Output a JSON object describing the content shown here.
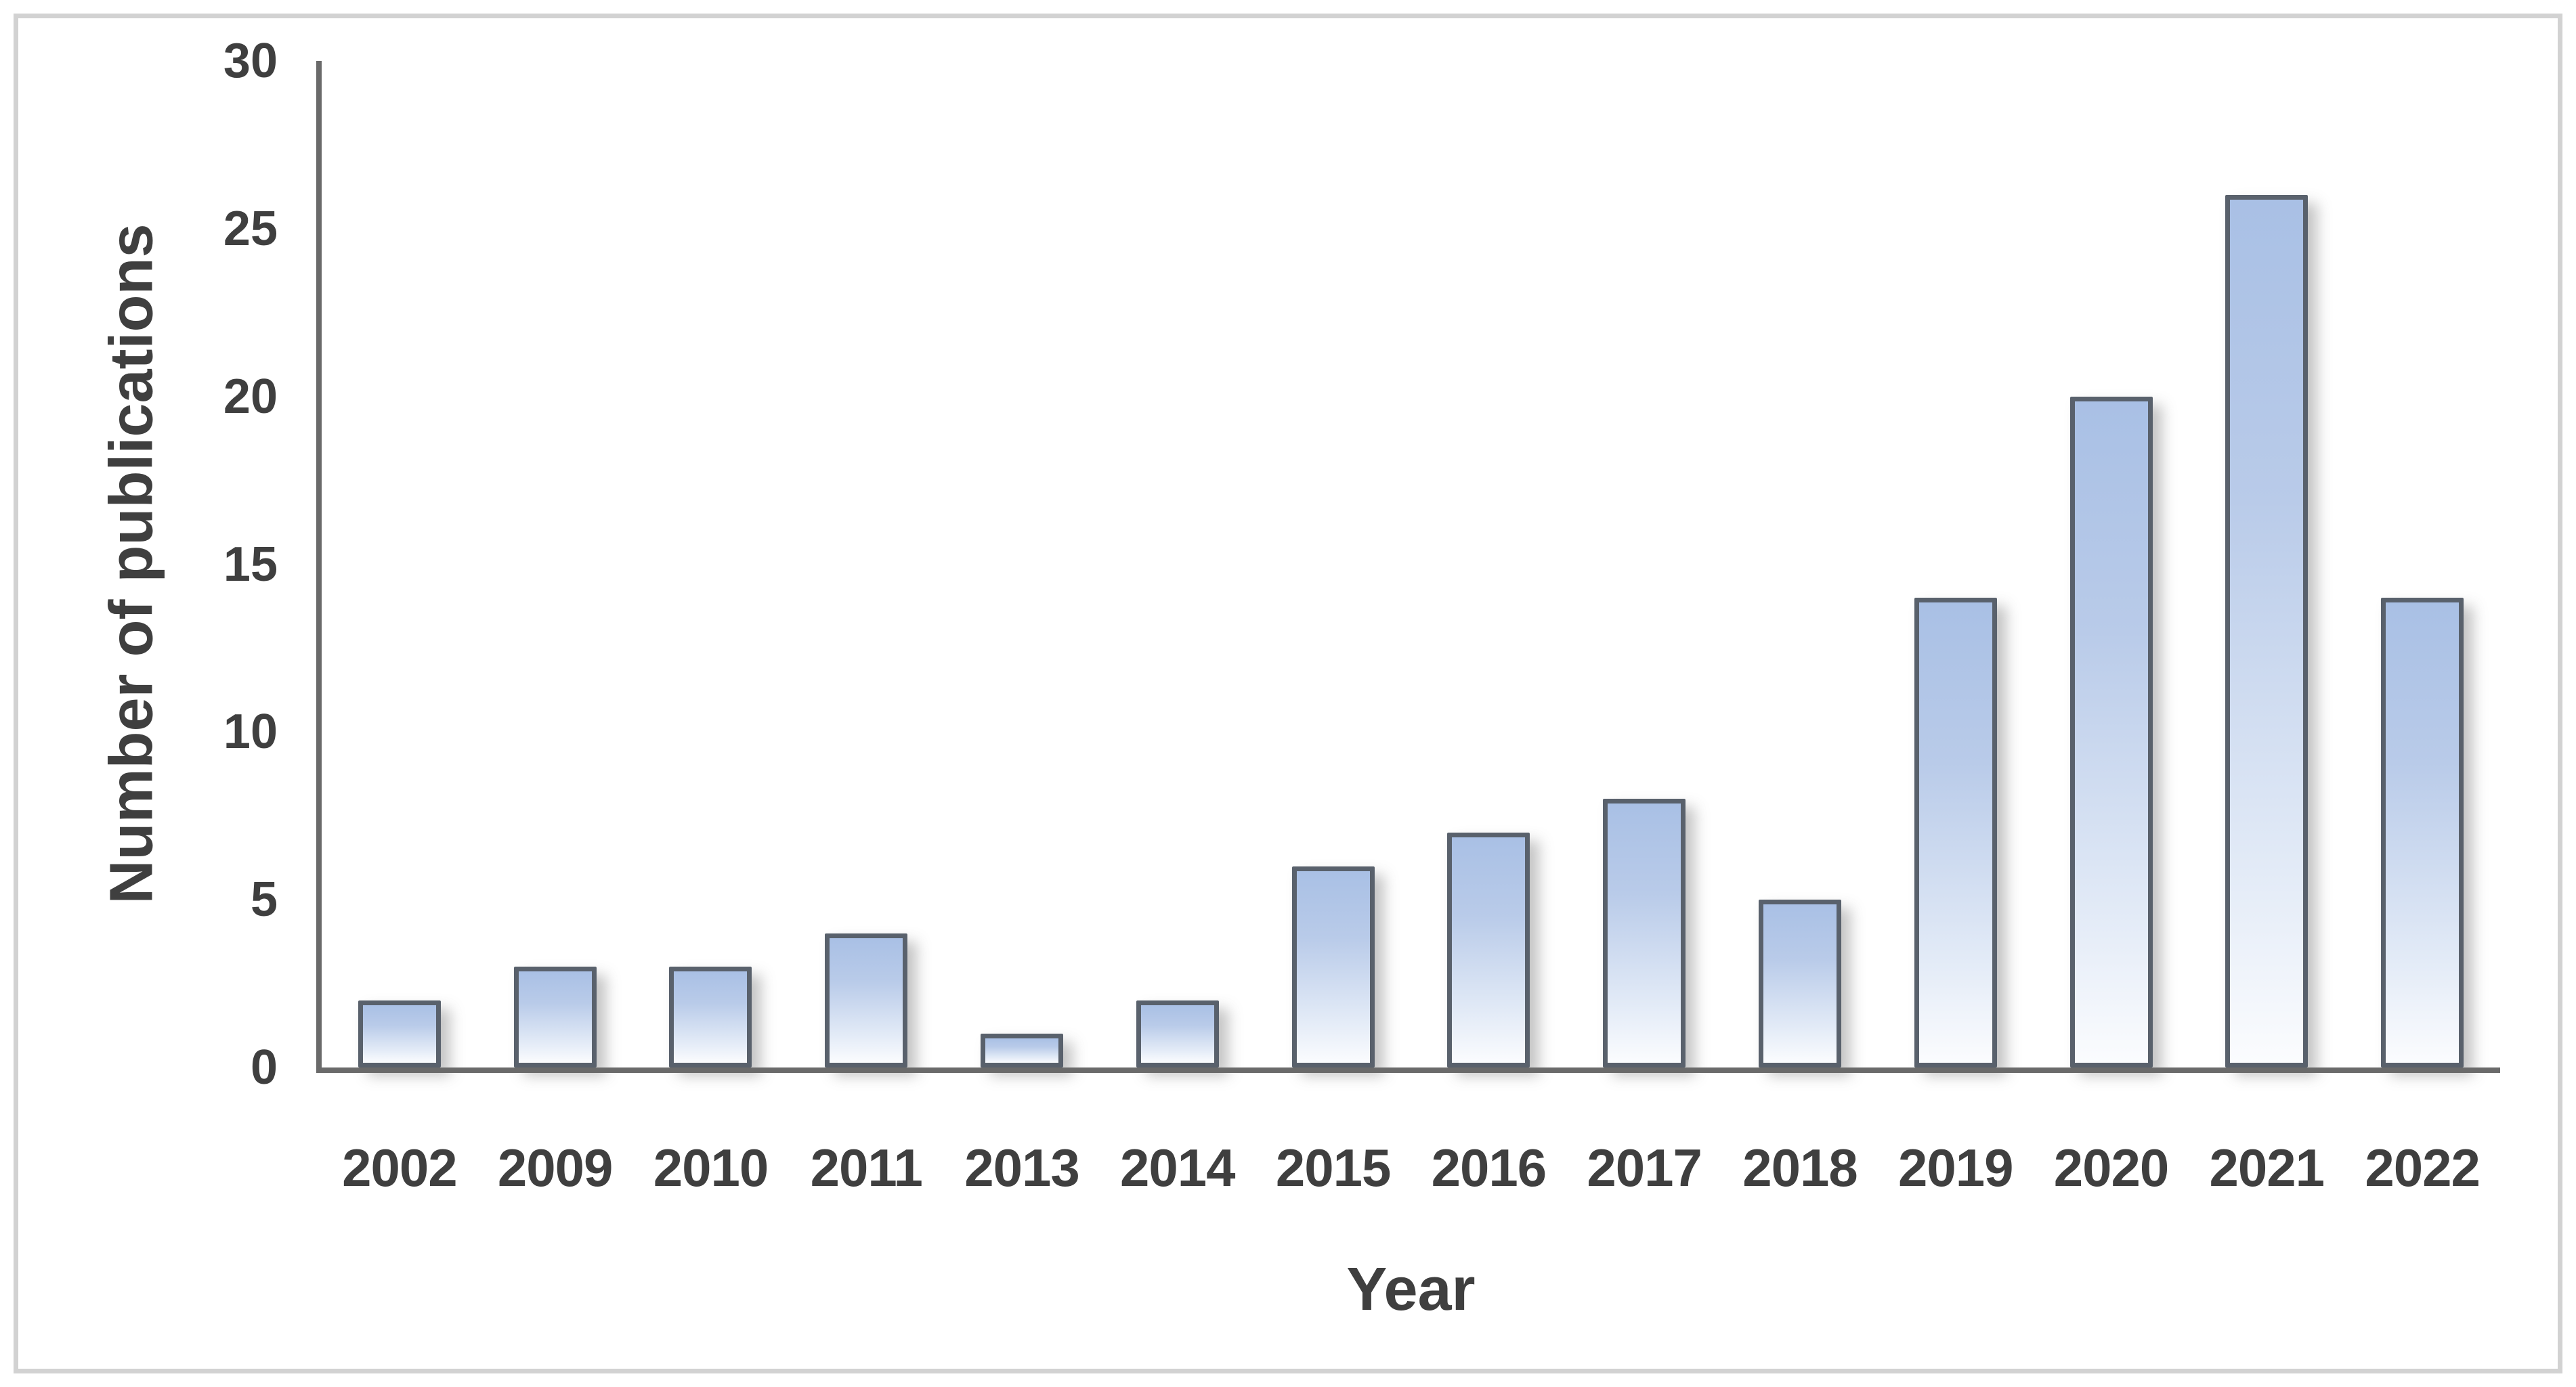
{
  "figure": {
    "frame_border_color": "#d2d2d2",
    "background_color": "#ffffff"
  },
  "chart_data": {
    "type": "bar",
    "title": "",
    "xlabel": "Year",
    "ylabel": "Number of publications",
    "categories": [
      "2002",
      "2009",
      "2010",
      "2011",
      "2013",
      "2014",
      "2015",
      "2016",
      "2017",
      "2018",
      "2019",
      "2020",
      "2021",
      "2022"
    ],
    "values": [
      2,
      3,
      3,
      4,
      1,
      2,
      6,
      7,
      8,
      5,
      14,
      20,
      26,
      14
    ],
    "ylim": [
      0,
      30
    ],
    "yticks": [
      0,
      5,
      10,
      15,
      20,
      25,
      30
    ],
    "grid": false,
    "legend": "none",
    "colors": {
      "bar_fill_top": "#a9c0e5",
      "bar_fill_bottom": "#fbfcfe",
      "bar_border": "#59616c",
      "axis_line": "#6a6a6a",
      "text": "#3f3f3f"
    }
  }
}
